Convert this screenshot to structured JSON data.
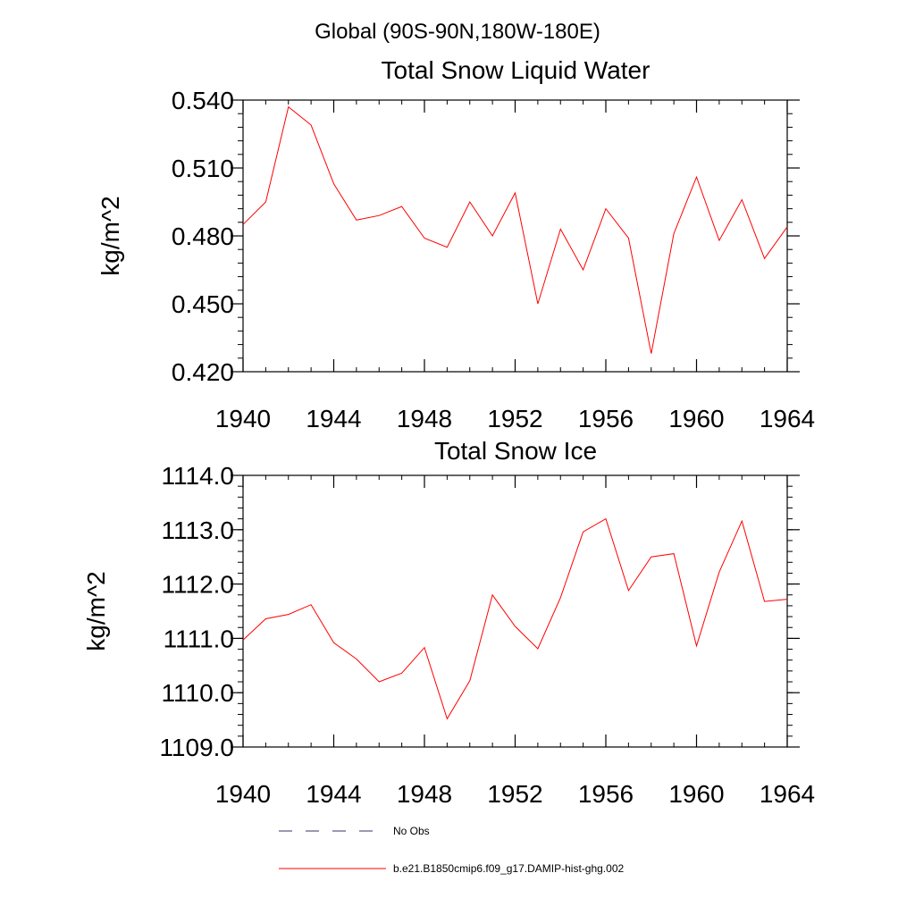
{
  "figure": {
    "suptitle": "Global (90S-90N,180W-180E)"
  },
  "legend": {
    "items": [
      {
        "label": "No Obs",
        "color": "#333366",
        "dash": true
      },
      {
        "label": "b.e21.B1850cmip6.f09_g17.DAMIP-hist-ghg.002",
        "color": "#ff0000",
        "dash": false
      }
    ]
  },
  "chart_data": [
    {
      "type": "line",
      "title": "Total Snow Liquid Water",
      "xlabel": "",
      "ylabel": "kg/m^2",
      "xlim": [
        1940,
        1964
      ],
      "ylim": [
        0.42,
        0.54
      ],
      "xticks": [
        1940,
        1944,
        1948,
        1952,
        1956,
        1960,
        1964
      ],
      "xtick_labels": [
        "1940",
        "1944",
        "1948",
        "1952",
        "1956",
        "1960",
        "1964"
      ],
      "yticks": [
        0.42,
        0.45,
        0.48,
        0.51,
        0.54
      ],
      "ytick_labels": [
        "0.420",
        "0.450",
        "0.480",
        "0.510",
        "0.540"
      ],
      "grid": false,
      "series": [
        {
          "name": "b.e21.B1850cmip6.f09_g17.DAMIP-hist-ghg.002",
          "color": "#ff0000",
          "x": [
            1940,
            1941,
            1942,
            1943,
            1944,
            1945,
            1946,
            1947,
            1948,
            1949,
            1950,
            1951,
            1952,
            1953,
            1954,
            1955,
            1956,
            1957,
            1958,
            1959,
            1960,
            1961,
            1962,
            1963,
            1964
          ],
          "y": [
            0.485,
            0.495,
            0.537,
            0.529,
            0.503,
            0.487,
            0.489,
            0.493,
            0.479,
            0.475,
            0.495,
            0.48,
            0.499,
            0.45,
            0.483,
            0.465,
            0.492,
            0.479,
            0.428,
            0.481,
            0.506,
            0.478,
            0.496,
            0.47,
            0.484
          ]
        }
      ]
    },
    {
      "type": "line",
      "title": "Total Snow Ice",
      "xlabel": "",
      "ylabel": "kg/m^2",
      "xlim": [
        1940,
        1964
      ],
      "ylim": [
        1109.0,
        1114.0
      ],
      "xticks": [
        1940,
        1944,
        1948,
        1952,
        1956,
        1960,
        1964
      ],
      "xtick_labels": [
        "1940",
        "1944",
        "1948",
        "1952",
        "1956",
        "1960",
        "1964"
      ],
      "yticks": [
        1109.0,
        1110.0,
        1111.0,
        1112.0,
        1113.0,
        1114.0
      ],
      "ytick_labels": [
        "1109.0",
        "1110.0",
        "1111.0",
        "1112.0",
        "1113.0",
        "1114.0"
      ],
      "grid": false,
      "series": [
        {
          "name": "b.e21.B1850cmip6.f09_g17.DAMIP-hist-ghg.002",
          "color": "#ff0000",
          "x": [
            1940,
            1941,
            1942,
            1943,
            1944,
            1945,
            1946,
            1947,
            1948,
            1949,
            1950,
            1951,
            1952,
            1953,
            1954,
            1955,
            1956,
            1957,
            1958,
            1959,
            1960,
            1961,
            1962,
            1963,
            1964
          ],
          "y": [
            1110.97,
            1111.36,
            1111.44,
            1111.62,
            1110.92,
            1110.62,
            1110.2,
            1110.36,
            1110.83,
            1109.52,
            1110.22,
            1111.8,
            1111.22,
            1110.81,
            1111.75,
            1112.96,
            1113.2,
            1111.88,
            1112.5,
            1112.56,
            1110.86,
            1112.22,
            1113.16,
            1111.68,
            1111.72
          ]
        }
      ]
    }
  ]
}
